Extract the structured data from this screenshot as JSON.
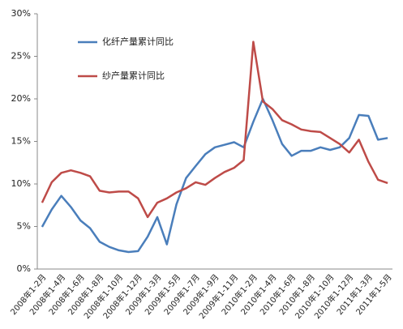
{
  "chart_data": {
    "type": "line",
    "categories": [
      "2008年1-2月",
      null,
      "2008年1-4月",
      null,
      "2008年1-6月",
      null,
      "2008年1-8月",
      null,
      "2008年1-10月",
      null,
      "2008年1-12月",
      null,
      "2009年1-3月",
      null,
      "2009年1-5月",
      null,
      "2009年1-7月",
      null,
      "2009年1-9月",
      null,
      "2009年1-11月",
      null,
      "2010年1-2月",
      null,
      "2010年1-4月",
      null,
      "2010年1-6月",
      null,
      "2010年1-8月",
      null,
      "2010年1-10月",
      null,
      "2010年1-12月",
      null,
      "2011年1-3月",
      null,
      "2011年1-5月"
    ],
    "series": [
      {
        "name": "化纤产量累计同比",
        "color": "#4a7ebb",
        "values": [
          4.95,
          7.0,
          8.6,
          7.3,
          5.7,
          4.8,
          3.2,
          2.6,
          2.2,
          2.0,
          2.1,
          3.8,
          6.1,
          2.9,
          7.6,
          10.7,
          12.1,
          13.5,
          14.3,
          14.6,
          14.9,
          14.3,
          17.3,
          20.0,
          17.5,
          14.7,
          13.3,
          13.9,
          13.9,
          14.3,
          14.0,
          14.3,
          15.4,
          18.1,
          18.0,
          15.2,
          15.4
        ]
      },
      {
        "name": "纱产量累计同比",
        "color": "#be4b48",
        "values": [
          7.8,
          10.2,
          11.3,
          11.6,
          11.3,
          10.9,
          9.2,
          9.0,
          9.1,
          9.1,
          8.3,
          6.1,
          7.8,
          8.3,
          9.0,
          9.5,
          10.2,
          9.9,
          10.7,
          11.4,
          11.9,
          12.8,
          26.7,
          19.7,
          18.8,
          17.5,
          17.0,
          16.4,
          16.2,
          16.1,
          15.4,
          14.7,
          13.7,
          15.2,
          12.6,
          10.5,
          10.1
        ]
      }
    ],
    "ylim": [
      0,
      30
    ],
    "yticks": [
      {
        "value": 0,
        "label": "0%"
      },
      {
        "value": 5,
        "label": "5%"
      },
      {
        "value": 10,
        "label": "10%"
      },
      {
        "value": 15,
        "label": "15%"
      },
      {
        "value": 20,
        "label": "20%"
      },
      {
        "value": 25,
        "label": "25%"
      },
      {
        "value": 30,
        "label": "30%"
      }
    ],
    "grid": false
  }
}
